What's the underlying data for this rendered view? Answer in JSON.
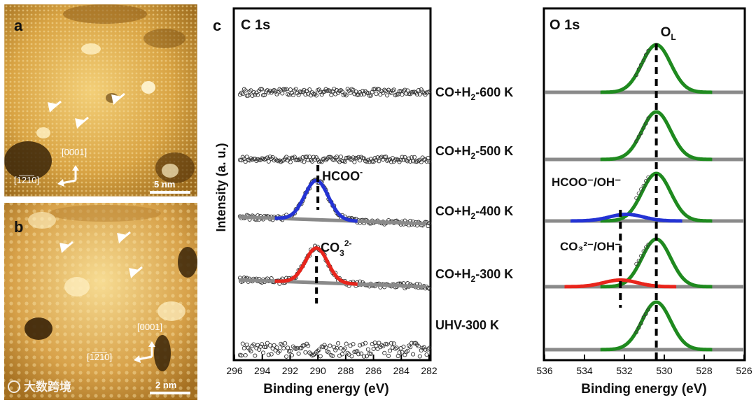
{
  "panels": {
    "a": {
      "label": "a",
      "scale_bar": "5 nm",
      "direction_up": "[0001]",
      "direction_side": "[1̅2̅1̅0]"
    },
    "b": {
      "label": "b",
      "scale_bar": "2 nm",
      "direction_up": "[0001]",
      "direction_side": "[1̅2̅1̅0]"
    },
    "c": {
      "label": "c"
    }
  },
  "watermark": {
    "text": "大数跨境"
  },
  "chart_data": [
    {
      "type": "scatter",
      "title": "C 1s",
      "xlabel": "Binding energy (eV)",
      "ylabel": "Intensity (a. u.)",
      "xlim": [
        296,
        282
      ],
      "x_ticks": [
        "296",
        "294",
        "292",
        "290",
        "288",
        "286",
        "284",
        "282"
      ],
      "series": [
        {
          "name": "UHV-300 K",
          "baseline": 0.06,
          "noise": 0.18,
          "peaks": []
        },
        {
          "name": "CO+H2-300 K",
          "baseline": 0.28,
          "noise": 0.07,
          "peaks": [
            {
              "center": 290.1,
              "height": 0.15,
              "width": 0.8,
              "color": "#e8251c"
            }
          ]
        },
        {
          "name": "CO+H2-400 K",
          "baseline": 0.47,
          "noise": 0.06,
          "peaks": [
            {
              "center": 290.1,
              "height": 0.17,
              "width": 0.85,
              "color": "#2433d4"
            }
          ]
        },
        {
          "name": "CO+H2-500 K",
          "baseline": 0.68,
          "noise": 0.07,
          "peaks": []
        },
        {
          "name": "CO+H2-600 K",
          "baseline": 0.86,
          "noise": 0.09,
          "peaks": []
        }
      ],
      "annotations": {
        "hcoo": {
          "text": "HCOO",
          "sup": "-",
          "x": 290.0
        },
        "co3": {
          "text": "CO",
          "sub": "3",
          "sup": "2-",
          "x": 290.1
        }
      }
    },
    {
      "type": "line",
      "title": "O 1s",
      "xlabel": "Binding energy (eV)",
      "xlim": [
        536,
        526
      ],
      "x_ticks": [
        "536",
        "534",
        "532",
        "530",
        "528",
        "526"
      ],
      "series": [
        {
          "name": "UHV-300 K",
          "peaks": [
            {
              "center": 530.4,
              "height": 1.0,
              "width": 0.72,
              "color": "#1f8a1f"
            }
          ]
        },
        {
          "name": "CO+H2-300 K",
          "peaks": [
            {
              "center": 530.4,
              "height": 1.0,
              "width": 0.72,
              "color": "#1f8a1f"
            },
            {
              "center": 532.2,
              "height": 0.14,
              "width": 0.85,
              "color": "#e8251c"
            }
          ]
        },
        {
          "name": "CO+H2-400 K",
          "peaks": [
            {
              "center": 530.4,
              "height": 1.0,
              "width": 0.72,
              "color": "#1f8a1f"
            },
            {
              "center": 531.9,
              "height": 0.14,
              "width": 0.85,
              "color": "#2433d4"
            }
          ]
        },
        {
          "name": "CO+H2-500 K",
          "peaks": [
            {
              "center": 530.4,
              "height": 1.0,
              "width": 0.72,
              "color": "#1f8a1f"
            }
          ]
        },
        {
          "name": "CO+H2-600 K",
          "peaks": [
            {
              "center": 530.4,
              "height": 1.0,
              "width": 0.72,
              "color": "#1f8a1f"
            }
          ]
        }
      ],
      "reference_lines": [
        {
          "x": 530.4,
          "label": "O",
          "sub": "L"
        },
        {
          "x": 532.2
        }
      ],
      "annotations": {
        "hcoo_oh": "HCOO⁻/OH⁻",
        "co3_oh": "CO₃²⁻/OH⁻"
      }
    }
  ],
  "row_labels": [
    {
      "main": "CO+H",
      "sub": "2",
      "rest": "-600 K"
    },
    {
      "main": "CO+H",
      "sub": "2",
      "rest": "-500 K"
    },
    {
      "main": "CO+H",
      "sub": "2",
      "rest": "-400 K"
    },
    {
      "main": "CO+H",
      "sub": "2",
      "rest": "-300 K"
    },
    {
      "main": "UHV-300 K",
      "sub": "",
      "rest": ""
    }
  ]
}
